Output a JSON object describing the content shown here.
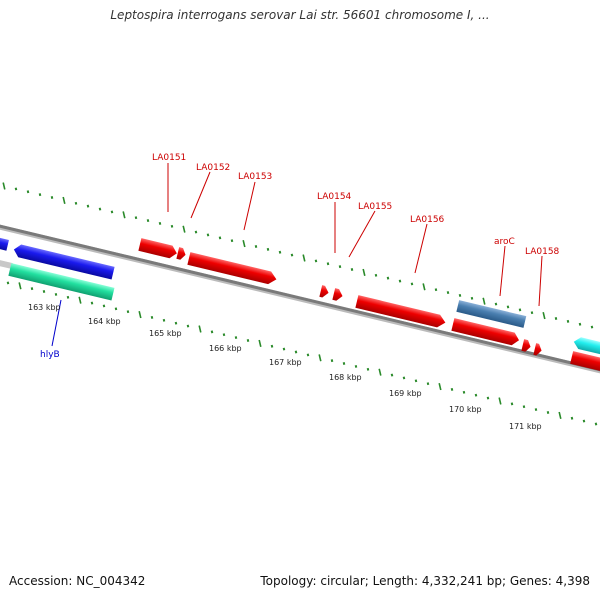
{
  "title": "Leptospira interrogans serovar Lai str. 56601 chromosome I, ...",
  "footer": {
    "accession": "Accession: NC_004342",
    "summary": "Topology: circular; Length: 4,332,241 bp; Genes: 4,398"
  },
  "scale_labels": [
    "163 kbp",
    "164 kbp",
    "165 kbp",
    "166 kbp",
    "167 kbp",
    "168 kbp",
    "169 kbp",
    "170 kbp",
    "171 kbp"
  ],
  "gene_labels": [
    {
      "text": "LA0151",
      "color": "#cc0000"
    },
    {
      "text": "LA0152",
      "color": "#cc0000"
    },
    {
      "text": "LA0153",
      "color": "#cc0000"
    },
    {
      "text": "LA0154",
      "color": "#cc0000"
    },
    {
      "text": "LA0155",
      "color": "#cc0000"
    },
    {
      "text": "LA0156",
      "color": "#cc0000"
    },
    {
      "text": "aroC",
      "color": "#cc0000"
    },
    {
      "text": "LA0158",
      "color": "#cc0000"
    },
    {
      "text": "hlyB",
      "color": "#0000cc"
    }
  ],
  "colors": {
    "backbone": "#888888",
    "forward_gene": "#ee0000",
    "reverse_gene": "#1a1aee",
    "teal_gene": "#22e0a0",
    "steel_gene": "#4a7fb0",
    "cyan_gene": "#22eeee",
    "tick": "#2a8a2a"
  }
}
